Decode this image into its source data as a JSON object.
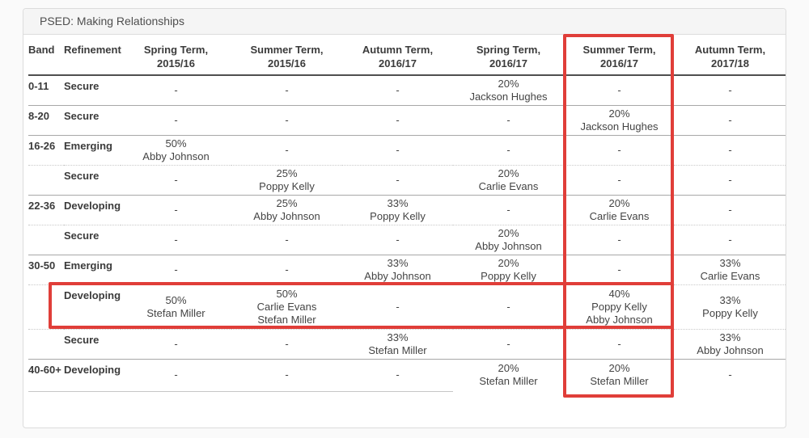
{
  "panel": {
    "title": "PSED: Making Relationships"
  },
  "table": {
    "columns": [
      {
        "label": "Band"
      },
      {
        "label": "Refinement"
      },
      {
        "label": "Spring Term,",
        "sub": "2015/16"
      },
      {
        "label": "Summer Term,",
        "sub": "2015/16"
      },
      {
        "label": "Autumn Term,",
        "sub": "2016/17"
      },
      {
        "label": "Spring Term,",
        "sub": "2016/17"
      },
      {
        "label": "Summer Term,",
        "sub": "2016/17"
      },
      {
        "label": "Autumn Term,",
        "sub": "2017/18"
      }
    ],
    "rows": [
      {
        "band": "0-11",
        "refinement": "Secure",
        "cells": [
          [
            "-"
          ],
          [
            "-"
          ],
          [
            "-"
          ],
          [
            "20%",
            "Jackson Hughes"
          ],
          [
            "-"
          ],
          [
            "-"
          ]
        ]
      },
      {
        "band": "8-20",
        "refinement": "Secure",
        "cells": [
          [
            "-"
          ],
          [
            "-"
          ],
          [
            "-"
          ],
          [
            "-"
          ],
          [
            "20%",
            "Jackson Hughes"
          ],
          [
            "-"
          ]
        ]
      },
      {
        "band": "16-26",
        "refinement": "Emerging",
        "cells": [
          [
            "50%",
            "Abby Johnson"
          ],
          [
            "-"
          ],
          [
            "-"
          ],
          [
            "-"
          ],
          [
            "-"
          ],
          [
            "-"
          ]
        ]
      },
      {
        "band": "",
        "refinement": "Secure",
        "cells": [
          [
            "-"
          ],
          [
            "25%",
            "Poppy Kelly"
          ],
          [
            "-"
          ],
          [
            "20%",
            "Carlie Evans"
          ],
          [
            "-"
          ],
          [
            "-"
          ]
        ]
      },
      {
        "band": "22-36",
        "refinement": "Developing",
        "cells": [
          [
            "-"
          ],
          [
            "25%",
            "Abby Johnson"
          ],
          [
            "33%",
            "Poppy Kelly"
          ],
          [
            "-"
          ],
          [
            "20%",
            "Carlie Evans"
          ],
          [
            "-"
          ]
        ]
      },
      {
        "band": "",
        "refinement": "Secure",
        "cells": [
          [
            "-"
          ],
          [
            "-"
          ],
          [
            "-"
          ],
          [
            "20%",
            "Abby Johnson"
          ],
          [
            "-"
          ],
          [
            "-"
          ]
        ]
      },
      {
        "band": "30-50",
        "refinement": "Emerging",
        "cells": [
          [
            "-"
          ],
          [
            "-"
          ],
          [
            "33%",
            "Abby Johnson"
          ],
          [
            "20%",
            "Poppy Kelly"
          ],
          [
            "-"
          ],
          [
            "33%",
            "Carlie Evans"
          ]
        ]
      },
      {
        "band": "",
        "refinement": "Developing",
        "cells": [
          [
            "50%",
            "Stefan Miller"
          ],
          [
            "50%",
            "Carlie Evans",
            "Stefan Miller"
          ],
          [
            "-"
          ],
          [
            "-"
          ],
          [
            "40%",
            "Poppy Kelly",
            "Abby Johnson"
          ],
          [
            "33%",
            "Poppy Kelly"
          ]
        ]
      },
      {
        "band": "",
        "refinement": "Secure",
        "cells": [
          [
            "-"
          ],
          [
            "-"
          ],
          [
            "33%",
            "Stefan Miller"
          ],
          [
            "-"
          ],
          [
            "-"
          ],
          [
            "33%",
            "Abby Johnson"
          ]
        ]
      },
      {
        "band": "40-60+",
        "refinement": "Developing",
        "cells": [
          [
            "-"
          ],
          [
            "-"
          ],
          [
            "-"
          ],
          [
            "20%",
            "Stefan Miller"
          ],
          [
            "20%",
            "Stefan Miller"
          ],
          [
            "-"
          ]
        ]
      }
    ]
  },
  "highlights": {
    "color": "#e03e39",
    "column_box_target": "Summer Term, 2016/17 column",
    "row_box_target": "30-50 Developing row"
  }
}
